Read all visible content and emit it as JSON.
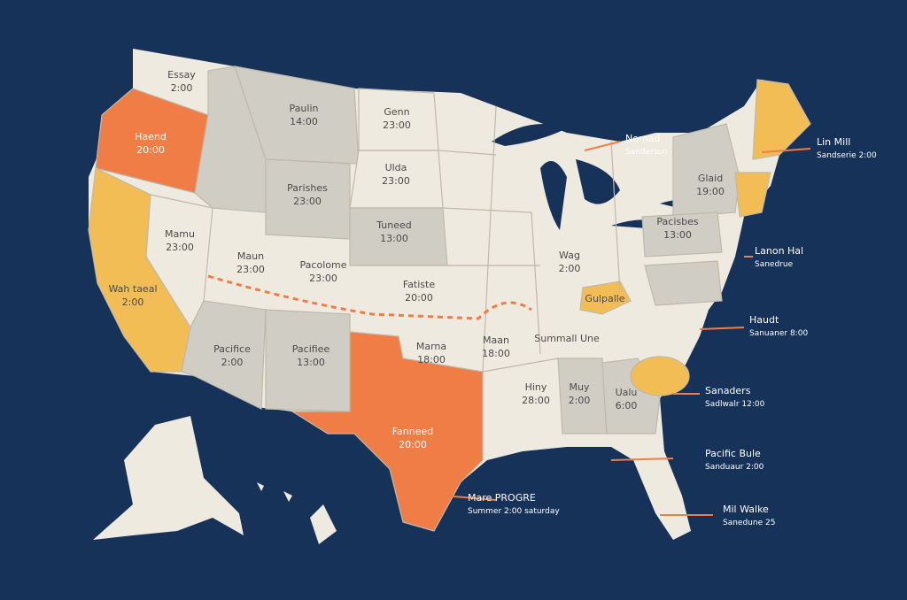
{
  "states": [
    {
      "name": "Essay",
      "time": "2:00"
    },
    {
      "name": "Haend",
      "time": "20:00"
    },
    {
      "name": "Paulin",
      "time": "14:00"
    },
    {
      "name": "Genn",
      "time": "23:00"
    },
    {
      "name": "Parishes",
      "time": "23:00"
    },
    {
      "name": "Ulda",
      "time": "23:00"
    },
    {
      "name": "Mamu",
      "time": "23:00"
    },
    {
      "name": "Maun",
      "time": "23:00"
    },
    {
      "name": "Pacolome",
      "time": "23:00"
    },
    {
      "name": "Tuneed",
      "time": "13:00"
    },
    {
      "name": "Fatiste",
      "time": "20:00"
    },
    {
      "name": "Wah taeal",
      "time": "2:00"
    },
    {
      "name": "Pacifice",
      "time": "2:00"
    },
    {
      "name": "Pacifiee",
      "time": "13:00"
    },
    {
      "name": "Fanneed",
      "time": "20:00"
    },
    {
      "name": "Marna",
      "time": "18:00"
    },
    {
      "name": "Maan",
      "time": "18:00"
    },
    {
      "name": "Hiny",
      "time": "28:00"
    },
    {
      "name": "Muy",
      "time": "2:00"
    },
    {
      "name": "Ualu",
      "time": "6:00"
    },
    {
      "name": "Wag",
      "time": "2:00"
    },
    {
      "name": "Pacisbes",
      "time": "13:00"
    },
    {
      "name": "Glaid",
      "time": "19:00"
    }
  ],
  "regions": [
    "Gulpalle",
    "Summall Une"
  ],
  "callouts": [
    {
      "title": "Nomad",
      "detail": "Sanderson"
    },
    {
      "title": "Lin Mill",
      "detail": "Sandserie 2:00"
    },
    {
      "title": "Lanon Hal",
      "detail": "Sanedrue"
    },
    {
      "title": "Haudt",
      "detail": "Sanuaner 8:00"
    },
    {
      "title": "Sanaders",
      "detail": "Sadlwalr 12:00"
    },
    {
      "title": "Pacific Bule",
      "detail": "Sanduaur 2:00"
    },
    {
      "title": "Mil Walke",
      "detail": "Sanedune 25"
    },
    {
      "title": "Mare PROGRE",
      "detail": "Summer 2:00 saturday"
    }
  ]
}
